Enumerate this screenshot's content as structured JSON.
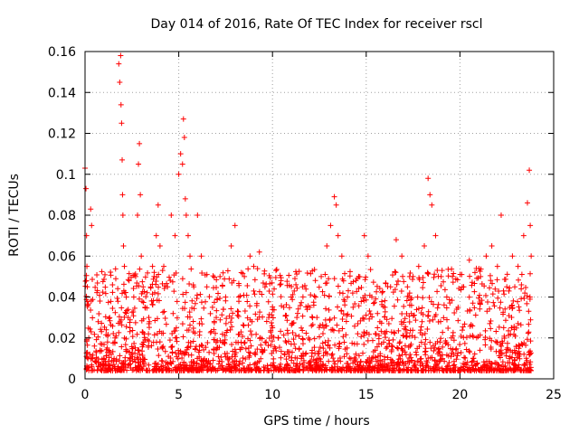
{
  "chart_data": {
    "type": "scatter",
    "title": "Day 014 of 2016, Rate Of TEC Index for receiver rscl",
    "xlabel": "GPS time / hours",
    "ylabel": "ROTI / TECUs",
    "xlim": [
      0,
      25
    ],
    "ylim": [
      0,
      0.16
    ],
    "x_ticks": [
      0,
      5,
      10,
      15,
      20,
      25
    ],
    "x_tick_labels": [
      "0",
      "5",
      "10",
      "15",
      "20",
      "25"
    ],
    "y_ticks": [
      0,
      0.02,
      0.04,
      0.06,
      0.08,
      0.1,
      0.12,
      0.14,
      0.16
    ],
    "y_tick_labels": [
      "0",
      "0.02",
      "0.04",
      "0.06",
      "0.08",
      "0.1",
      "0.12",
      "0.14",
      "0.16"
    ],
    "grid": true,
    "marker": "+",
    "series": [
      {
        "name": "ROTI",
        "color": "#ff0000",
        "points": [
          [
            0.0,
            0.103
          ],
          [
            0.05,
            0.093
          ],
          [
            0.08,
            0.07
          ],
          [
            0.1,
            0.055
          ],
          [
            0.12,
            0.045
          ],
          [
            0.15,
            0.036
          ],
          [
            0.2,
            0.02
          ],
          [
            0.25,
            0.012
          ],
          [
            0.3,
            0.083
          ],
          [
            0.35,
            0.075
          ],
          [
            0.4,
            0.01
          ],
          [
            0.5,
            0.016
          ],
          [
            0.6,
            0.008
          ],
          [
            0.8,
            0.014
          ],
          [
            1.0,
            0.01
          ],
          [
            1.2,
            0.018
          ],
          [
            1.4,
            0.012
          ],
          [
            1.6,
            0.02
          ],
          [
            1.8,
            0.154
          ],
          [
            1.85,
            0.145
          ],
          [
            1.9,
            0.158
          ],
          [
            1.92,
            0.134
          ],
          [
            1.95,
            0.125
          ],
          [
            1.98,
            0.107
          ],
          [
            2.0,
            0.09
          ],
          [
            2.02,
            0.08
          ],
          [
            2.05,
            0.065
          ],
          [
            2.1,
            0.055
          ],
          [
            2.2,
            0.04
          ],
          [
            2.3,
            0.03
          ],
          [
            2.4,
            0.025
          ],
          [
            2.6,
            0.04
          ],
          [
            2.7,
            0.05
          ],
          [
            2.8,
            0.08
          ],
          [
            2.85,
            0.105
          ],
          [
            2.9,
            0.115
          ],
          [
            2.95,
            0.09
          ],
          [
            3.0,
            0.06
          ],
          [
            3.1,
            0.045
          ],
          [
            3.2,
            0.035
          ],
          [
            3.4,
            0.03
          ],
          [
            3.5,
            0.045
          ],
          [
            3.6,
            0.055
          ],
          [
            3.8,
            0.07
          ],
          [
            3.9,
            0.085
          ],
          [
            4.0,
            0.065
          ],
          [
            4.2,
            0.055
          ],
          [
            4.4,
            0.045
          ],
          [
            4.6,
            0.08
          ],
          [
            4.8,
            0.07
          ],
          [
            5.0,
            0.1
          ],
          [
            5.1,
            0.11
          ],
          [
            5.2,
            0.105
          ],
          [
            5.25,
            0.127
          ],
          [
            5.3,
            0.118
          ],
          [
            5.35,
            0.088
          ],
          [
            5.4,
            0.08
          ],
          [
            5.5,
            0.07
          ],
          [
            5.6,
            0.06
          ],
          [
            5.8,
            0.045
          ],
          [
            6.0,
            0.08
          ],
          [
            6.2,
            0.06
          ],
          [
            6.5,
            0.045
          ],
          [
            6.8,
            0.035
          ],
          [
            7.0,
            0.03
          ],
          [
            7.2,
            0.05
          ],
          [
            7.5,
            0.04
          ],
          [
            7.8,
            0.065
          ],
          [
            8.0,
            0.075
          ],
          [
            8.2,
            0.04
          ],
          [
            8.5,
            0.05
          ],
          [
            8.8,
            0.06
          ],
          [
            9.0,
            0.055
          ],
          [
            9.3,
            0.062
          ],
          [
            9.6,
            0.045
          ],
          [
            9.8,
            0.03
          ],
          [
            10.0,
            0.025
          ],
          [
            10.3,
            0.02
          ],
          [
            10.6,
            0.035
          ],
          [
            11.0,
            0.04
          ],
          [
            11.3,
            0.03
          ],
          [
            11.6,
            0.045
          ],
          [
            12.0,
            0.035
          ],
          [
            12.3,
            0.04
          ],
          [
            12.6,
            0.05
          ],
          [
            12.9,
            0.065
          ],
          [
            13.1,
            0.075
          ],
          [
            13.3,
            0.089
          ],
          [
            13.4,
            0.085
          ],
          [
            13.5,
            0.07
          ],
          [
            13.7,
            0.06
          ],
          [
            14.0,
            0.04
          ],
          [
            14.3,
            0.035
          ],
          [
            14.6,
            0.05
          ],
          [
            14.9,
            0.07
          ],
          [
            15.1,
            0.06
          ],
          [
            15.3,
            0.04
          ],
          [
            15.6,
            0.025
          ],
          [
            16.0,
            0.035
          ],
          [
            16.3,
            0.045
          ],
          [
            16.6,
            0.068
          ],
          [
            16.9,
            0.06
          ],
          [
            17.2,
            0.045
          ],
          [
            17.5,
            0.05
          ],
          [
            17.8,
            0.055
          ],
          [
            18.1,
            0.065
          ],
          [
            18.3,
            0.098
          ],
          [
            18.4,
            0.09
          ],
          [
            18.5,
            0.085
          ],
          [
            18.7,
            0.07
          ],
          [
            19.0,
            0.05
          ],
          [
            19.3,
            0.04
          ],
          [
            19.6,
            0.05
          ],
          [
            19.9,
            0.035
          ],
          [
            20.2,
            0.045
          ],
          [
            20.5,
            0.058
          ],
          [
            20.8,
            0.052
          ],
          [
            21.1,
            0.05
          ],
          [
            21.4,
            0.06
          ],
          [
            21.7,
            0.065
          ],
          [
            22.0,
            0.055
          ],
          [
            22.2,
            0.08
          ],
          [
            22.5,
            0.045
          ],
          [
            22.8,
            0.06
          ],
          [
            23.1,
            0.055
          ],
          [
            23.4,
            0.07
          ],
          [
            23.6,
            0.086
          ],
          [
            23.7,
            0.102
          ],
          [
            23.75,
            0.075
          ],
          [
            23.8,
            0.06
          ]
        ]
      }
    ]
  }
}
